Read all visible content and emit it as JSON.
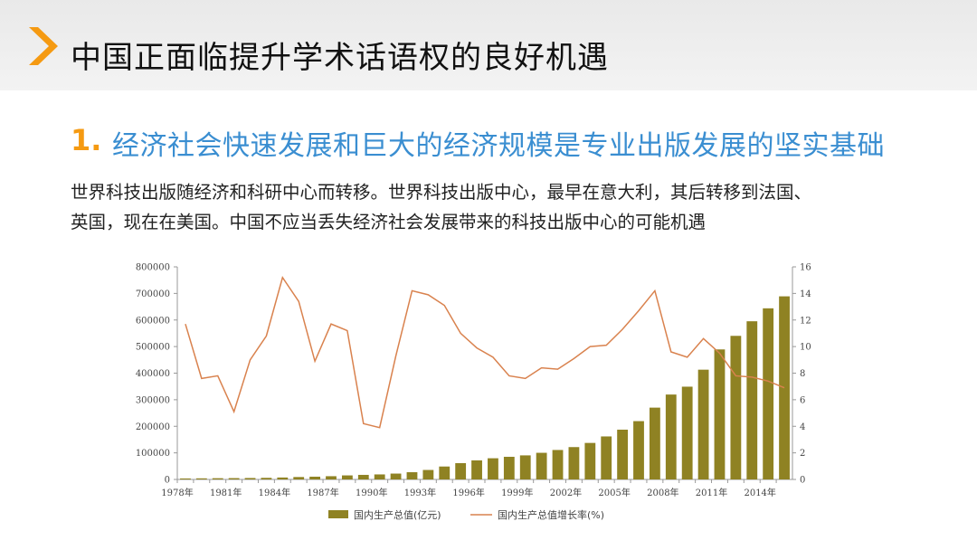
{
  "slide": {
    "title": "中国正面临提升学术话语权的良好机遇",
    "subtitle_number": "1.",
    "subtitle": "经济社会快速发展和巨大的经济规模是专业出版发展的坚实基础",
    "body_lines": [
      "世界科技出版随经济和科研中心而转移。世界科技出版中心，最早在意大利，其后转移到法国、",
      "英国，现在在美国。中国不应当丢失经济社会发展带来的科技出版中心的可能机遇"
    ]
  },
  "colors": {
    "accent_orange": "#f59a12",
    "subtitle_blue": "#3a8ed1",
    "bar": "#8f8223",
    "line": "#d9824e"
  },
  "chart_data": {
    "type": "bar+line",
    "x": [
      1978,
      1979,
      1980,
      1981,
      1982,
      1983,
      1984,
      1985,
      1986,
      1987,
      1988,
      1989,
      1990,
      1991,
      1992,
      1993,
      1994,
      1995,
      1996,
      1997,
      1998,
      1999,
      2000,
      2001,
      2002,
      2003,
      2004,
      2005,
      2006,
      2007,
      2008,
      2009,
      2010,
      2011,
      2012,
      2013,
      2014,
      2015
    ],
    "x_tick_labels": [
      "1978年",
      "1981年",
      "1984年",
      "1987年",
      "1990年",
      "1993年",
      "1996年",
      "1999年",
      "2002年",
      "2005年",
      "2008年",
      "2011年",
      "2014年"
    ],
    "y_left_ticks": [
      "0",
      "100000",
      "200000",
      "300000",
      "400000",
      "500000",
      "600000",
      "700000",
      "800000"
    ],
    "y_right_ticks": [
      "0",
      "2",
      "4",
      "6",
      "8",
      "10",
      "12",
      "14",
      "16"
    ],
    "ylim_left": [
      0,
      800000
    ],
    "ylim_right": [
      0,
      16
    ],
    "series": [
      {
        "name": "国内生产总值(亿元)",
        "type": "bar",
        "axis": "left",
        "values": [
          3679,
          4101,
          4588,
          4936,
          5373,
          6021,
          7279,
          9099,
          10376,
          12175,
          15180,
          17180,
          18873,
          22006,
          27195,
          35673,
          48638,
          61340,
          71814,
          79715,
          85196,
          90564,
          100280,
          110863,
          121717,
          137422,
          161840,
          187319,
          219439,
          270232,
          319516,
          349081,
          413030,
          489301,
          540367,
          595244,
          643974,
          689052
        ]
      },
      {
        "name": "国内生产总值增长率(%)",
        "type": "line",
        "axis": "right",
        "values": [
          11.7,
          7.6,
          7.8,
          5.1,
          9.0,
          10.8,
          15.2,
          13.4,
          8.9,
          11.7,
          11.2,
          4.2,
          3.9,
          9.3,
          14.2,
          13.9,
          13.1,
          11.0,
          9.9,
          9.2,
          7.8,
          7.6,
          8.4,
          8.3,
          9.1,
          10.0,
          10.1,
          11.3,
          12.7,
          14.2,
          9.6,
          9.2,
          10.6,
          9.5,
          7.8,
          7.7,
          7.4,
          6.9
        ]
      }
    ],
    "legend_position": "bottom"
  }
}
